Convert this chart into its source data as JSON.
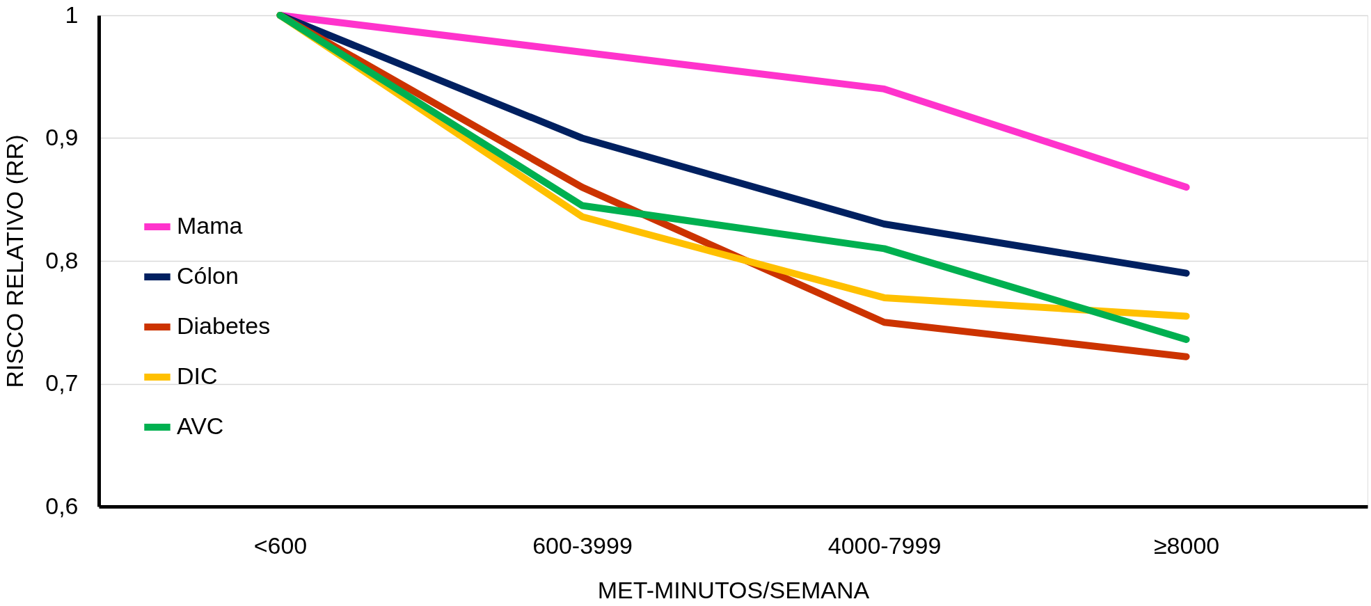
{
  "chart_data": {
    "type": "line",
    "xlabel": "MET-MINUTOS/SEMANA",
    "ylabel": "RISCO RELATIVO (RR)",
    "categories": [
      "<600",
      "600-3999",
      "4000-7999",
      "≥8000"
    ],
    "series": [
      {
        "name": "Mama",
        "color": "#ff33cc",
        "values": [
          1.0,
          0.97,
          0.94,
          0.86
        ]
      },
      {
        "name": "Cólon",
        "color": "#002060",
        "values": [
          1.0,
          0.9,
          0.83,
          0.79
        ]
      },
      {
        "name": "Diabetes",
        "color": "#cc3300",
        "values": [
          1.0,
          0.86,
          0.75,
          0.722
        ]
      },
      {
        "name": "DIC",
        "color": "#ffc000",
        "values": [
          1.0,
          0.836,
          0.77,
          0.755
        ]
      },
      {
        "name": "AVC",
        "color": "#00b050",
        "values": [
          1.0,
          0.845,
          0.81,
          0.736
        ]
      }
    ],
    "ylim": [
      0.6,
      1.0
    ],
    "yticks": [
      {
        "value": 0.6,
        "label": "0,6"
      },
      {
        "value": 0.7,
        "label": "0,7"
      },
      {
        "value": 0.8,
        "label": "0,8"
      },
      {
        "value": 0.9,
        "label": "0,9"
      },
      1
    ],
    "grid": "y",
    "legend": "left",
    "marker": "none",
    "line_style": "solid"
  }
}
